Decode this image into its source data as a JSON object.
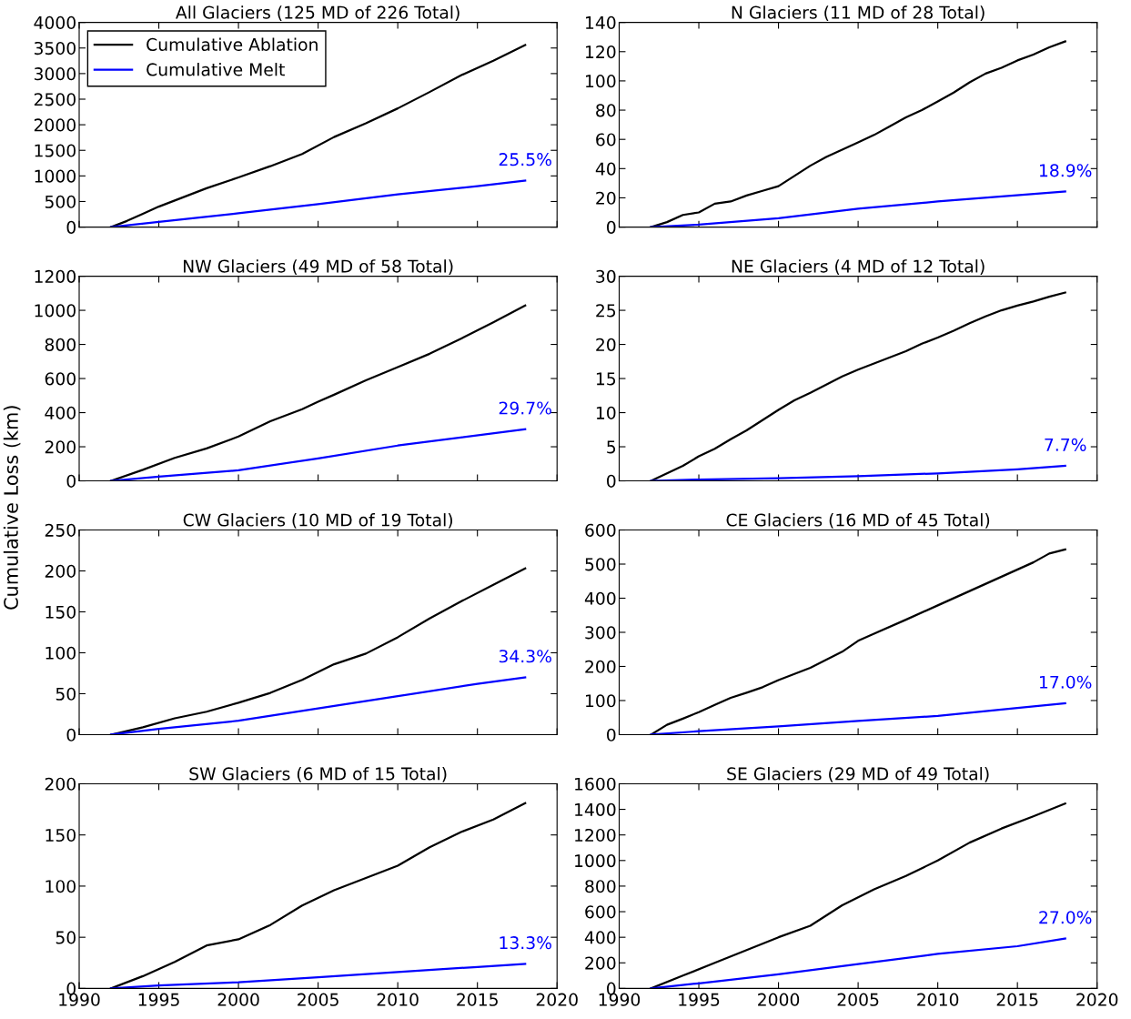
{
  "chart_data": [
    {
      "type": "line",
      "title": "All Glaciers (125 MD of 226 Total)",
      "xlim": [
        1990,
        2020
      ],
      "xticks": [
        1990,
        1995,
        2000,
        2005,
        2010,
        2015,
        2020
      ],
      "ylim": [
        0,
        4000
      ],
      "yticks": [
        0,
        500,
        1000,
        1500,
        2000,
        2500,
        3000,
        3500,
        4000
      ],
      "tick_labels": "y",
      "legend": "top left",
      "grid": false,
      "series": [
        {
          "name": "Cumulative Ablation",
          "color": "#000000",
          "x": [
            1992,
            1993,
            1994,
            1995,
            1996,
            1998,
            2000,
            2002,
            2004,
            2006,
            2008,
            2010,
            2012,
            2014,
            2016,
            2018
          ],
          "values": [
            0,
            120,
            260,
            400,
            520,
            760,
            970,
            1190,
            1430,
            1760,
            2030,
            2320,
            2640,
            2970,
            3250,
            3560
          ]
        },
        {
          "name": "Cumulative Melt",
          "color": "#0000ff",
          "x": [
            1992,
            1995,
            2000,
            2005,
            2010,
            2015,
            2018
          ],
          "values": [
            0,
            100,
            270,
            450,
            640,
            800,
            910
          ]
        }
      ],
      "annotations": [
        "25.5%"
      ]
    },
    {
      "type": "line",
      "title": "N Glaciers (11 MD of 28 Total)",
      "xlim": [
        1990,
        2020
      ],
      "xticks": [
        1990,
        1995,
        2000,
        2005,
        2010,
        2015,
        2020
      ],
      "ylim": [
        0,
        140
      ],
      "yticks": [
        0,
        20,
        40,
        60,
        80,
        100,
        120,
        140
      ],
      "tick_labels": "y",
      "grid": false,
      "series": [
        {
          "color": "#000000",
          "x": [
            1992,
            1993,
            1994,
            1995,
            1996,
            1997,
            1998,
            1999,
            2000,
            2001,
            2002,
            2003,
            2004,
            2005,
            2006,
            2007,
            2008,
            2009,
            2010,
            2011,
            2012,
            2013,
            2014,
            2015,
            2016,
            2017,
            2018
          ],
          "values": [
            0,
            3.4,
            8.3,
            10,
            16,
            17.5,
            21.6,
            24.8,
            28,
            35,
            42,
            48,
            53,
            58,
            63,
            69,
            75,
            80,
            86,
            92,
            99,
            105,
            109,
            114,
            118,
            123,
            127
          ]
        },
        {
          "color": "#0000ff",
          "x": [
            1992,
            1995,
            2000,
            2005,
            2010,
            2018
          ],
          "values": [
            0,
            1.7,
            6,
            12.6,
            17.5,
            24.3
          ]
        }
      ],
      "annotations": [
        "18.9%"
      ]
    },
    {
      "type": "line",
      "title": "NW Glaciers (49 MD of 58 Total)",
      "xlim": [
        1990,
        2020
      ],
      "xticks": [
        1990,
        1995,
        2000,
        2005,
        2010,
        2015,
        2020
      ],
      "ylim": [
        0,
        1200
      ],
      "yticks": [
        0,
        200,
        400,
        600,
        800,
        1000,
        1200
      ],
      "tick_labels": "y",
      "grid": false,
      "series": [
        {
          "color": "#000000",
          "x": [
            1992,
            1994,
            1996,
            1998,
            2000,
            2002,
            2004,
            2005,
            2006,
            2008,
            2010,
            2012,
            2014,
            2016,
            2018
          ],
          "values": [
            0,
            65,
            135,
            190,
            260,
            350,
            420,
            464,
            505,
            590,
            667,
            745,
            835,
            930,
            1028
          ]
        },
        {
          "color": "#0000ff",
          "x": [
            1992,
            1995,
            2000,
            2005,
            2010,
            2018
          ],
          "values": [
            0,
            25,
            62,
            132,
            207,
            303
          ]
        }
      ],
      "annotations": [
        "29.7%"
      ]
    },
    {
      "type": "line",
      "title": "NE Glaciers (4 MD of 12 Total)",
      "xlim": [
        1990,
        2020
      ],
      "xticks": [
        1990,
        1995,
        2000,
        2005,
        2010,
        2015,
        2020
      ],
      "ylim": [
        0,
        30
      ],
      "yticks": [
        0,
        5,
        10,
        15,
        20,
        25,
        30
      ],
      "tick_labels": "y",
      "grid": false,
      "series": [
        {
          "color": "#000000",
          "x": [
            1992,
            1994,
            1995,
            1996,
            1997,
            1998,
            1999,
            2000,
            2001,
            2002,
            2003,
            2004,
            2005,
            2006,
            2007,
            2008,
            2009,
            2010,
            2011,
            2012,
            2013,
            2014,
            2015,
            2016,
            2017,
            2018
          ],
          "values": [
            0,
            2.2,
            3.6,
            4.7,
            6.1,
            7.4,
            8.9,
            10.4,
            11.8,
            12.9,
            14.1,
            15.3,
            16.3,
            17.2,
            18.1,
            19,
            20.1,
            21,
            22,
            23.1,
            24.1,
            25,
            25.7,
            26.3,
            27,
            27.6
          ]
        },
        {
          "color": "#0000ff",
          "x": [
            1992,
            1995,
            2000,
            2005,
            2010,
            2015,
            2018
          ],
          "values": [
            0,
            0.2,
            0.4,
            0.7,
            1.1,
            1.7,
            2.2
          ]
        }
      ],
      "annotations": [
        "7.7%"
      ]
    },
    {
      "type": "line",
      "title": "CW Glaciers (10 MD of 19 Total)",
      "ylabel": "Cumulative Loss (km)",
      "xlim": [
        1990,
        2020
      ],
      "xticks": [
        1990,
        1995,
        2000,
        2005,
        2010,
        2015,
        2020
      ],
      "ylim": [
        0,
        250
      ],
      "yticks": [
        0,
        50,
        100,
        150,
        200,
        250
      ],
      "tick_labels": "y",
      "grid": false,
      "series": [
        {
          "color": "#000000",
          "x": [
            1992,
            1994,
            1996,
            1998,
            2000,
            2002,
            2004,
            2006,
            2008,
            2010,
            2012,
            2014,
            2016,
            2018
          ],
          "values": [
            0,
            9,
            20,
            28,
            39,
            51,
            67,
            86,
            99,
            119,
            142,
            163,
            183,
            203
          ]
        },
        {
          "color": "#0000ff",
          "x": [
            1992,
            1995,
            2000,
            2005,
            2010,
            2015,
            2018
          ],
          "values": [
            0,
            7,
            17,
            32,
            47,
            62,
            70
          ]
        }
      ],
      "annotations": [
        "34.3%"
      ]
    },
    {
      "type": "line",
      "title": "CE Glaciers (16 MD of 45 Total)",
      "xlim": [
        1990,
        2020
      ],
      "xticks": [
        1990,
        1995,
        2000,
        2005,
        2010,
        2015,
        2020
      ],
      "ylim": [
        0,
        600
      ],
      "yticks": [
        0,
        100,
        200,
        300,
        400,
        500,
        600
      ],
      "tick_labels": "y",
      "grid": false,
      "series": [
        {
          "color": "#000000",
          "x": [
            1992,
            1993,
            1994,
            1995,
            1996,
            1997,
            1998,
            1999,
            2000,
            2002,
            2004,
            2005,
            2006,
            2008,
            2010,
            2012,
            2014,
            2016,
            2017,
            2018
          ],
          "values": [
            0,
            29,
            47,
            66,
            87,
            108,
            123,
            139,
            160,
            196,
            243,
            275,
            296,
            337,
            379,
            421,
            463,
            505,
            531,
            543
          ]
        },
        {
          "color": "#0000ff",
          "x": [
            1992,
            1995,
            2000,
            2005,
            2010,
            2015,
            2018
          ],
          "values": [
            0,
            10,
            24,
            40,
            55,
            78,
            92
          ]
        }
      ],
      "annotations": [
        "17.0%"
      ]
    },
    {
      "type": "line",
      "title": "SW Glaciers (6 MD of 15 Total)",
      "xlim": [
        1990,
        2020
      ],
      "xticks": [
        1990,
        1995,
        2000,
        2005,
        2010,
        2015,
        2020
      ],
      "ylim": [
        0,
        200
      ],
      "yticks": [
        0,
        50,
        100,
        150,
        200
      ],
      "grid": false,
      "series": [
        {
          "color": "#000000",
          "x": [
            1992,
            1994,
            1996,
            1998,
            2000,
            2002,
            2004,
            2006,
            2008,
            2010,
            2012,
            2014,
            2016,
            2018
          ],
          "values": [
            0,
            12,
            26,
            42,
            48,
            62,
            81,
            96,
            108,
            120,
            138,
            153,
            165,
            181
          ]
        },
        {
          "color": "#0000ff",
          "x": [
            1992,
            1995,
            2000,
            2005,
            2010,
            2015,
            2018
          ],
          "values": [
            0,
            3,
            6,
            11,
            16,
            21,
            24
          ]
        }
      ],
      "annotations": [
        "13.3%"
      ]
    },
    {
      "type": "line",
      "title": "SE Glaciers (29 MD of 49 Total)",
      "xlim": [
        1990,
        2020
      ],
      "xticks": [
        1990,
        1995,
        2000,
        2005,
        2010,
        2015,
        2020
      ],
      "ylim": [
        0,
        1600
      ],
      "yticks": [
        0,
        200,
        400,
        600,
        800,
        1000,
        1200,
        1400,
        1600
      ],
      "grid": false,
      "series": [
        {
          "color": "#000000",
          "x": [
            1992,
            1994,
            1996,
            1998,
            2000,
            2002,
            2004,
            2006,
            2008,
            2010,
            2012,
            2014,
            2016,
            2018
          ],
          "values": [
            0,
            100,
            200,
            300,
            400,
            490,
            650,
            775,
            880,
            1000,
            1140,
            1250,
            1345,
            1445
          ]
        },
        {
          "color": "#0000ff",
          "x": [
            1992,
            1995,
            2000,
            2005,
            2010,
            2015,
            2018
          ],
          "values": [
            0,
            40,
            110,
            190,
            270,
            330,
            390
          ]
        }
      ],
      "annotations": [
        "27.0%"
      ]
    }
  ]
}
